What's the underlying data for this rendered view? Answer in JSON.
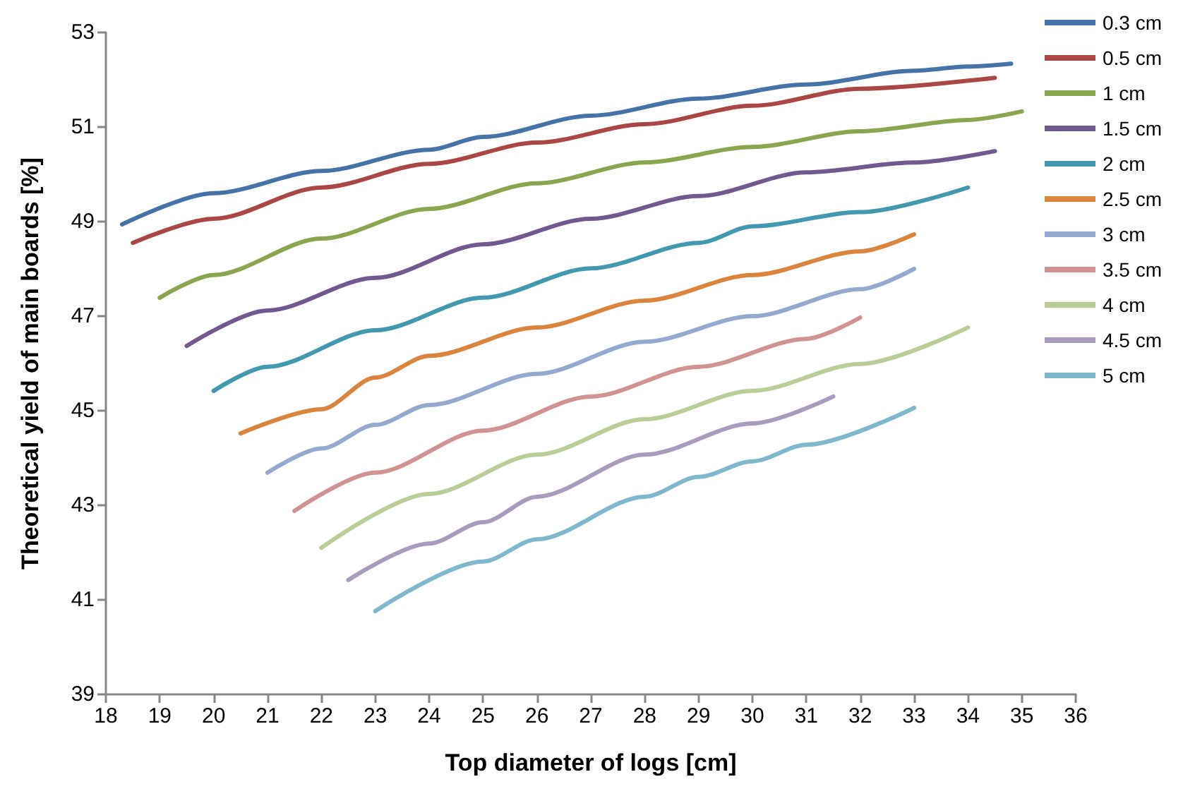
{
  "chart_data": {
    "type": "line",
    "xlabel": "Top diameter of logs [cm]",
    "ylabel": "Theoretical yield of main boards [%]",
    "xlim": [
      18,
      36
    ],
    "xticks": [
      18,
      19,
      20,
      21,
      22,
      23,
      24,
      25,
      26,
      27,
      28,
      29,
      30,
      31,
      32,
      33,
      34,
      35,
      36
    ],
    "ylim": [
      39,
      53
    ],
    "yticks": [
      39,
      41,
      43,
      45,
      47,
      49,
      51,
      53
    ],
    "grid": false,
    "legend": "right",
    "marker": "none",
    "line_style": "solid",
    "series": [
      {
        "name": "0.3 cm",
        "color": "#4572a7",
        "x": [
          18.3,
          20,
          22,
          24,
          25,
          27,
          29,
          31,
          33,
          34,
          34.8
        ],
        "values": [
          48.94,
          49.6,
          50.07,
          50.52,
          50.79,
          51.24,
          51.6,
          51.9,
          52.19,
          52.28,
          52.34
        ]
      },
      {
        "name": "0.5 cm",
        "color": "#aa4643",
        "x": [
          18.5,
          20,
          22,
          24,
          26,
          28,
          30,
          32,
          34.5
        ],
        "values": [
          48.55,
          49.06,
          49.72,
          50.22,
          50.67,
          51.06,
          51.45,
          51.81,
          52.04
        ]
      },
      {
        "name": "1 cm",
        "color": "#89a54e",
        "x": [
          19,
          20,
          22,
          24,
          26,
          28,
          30,
          32,
          34,
          35
        ],
        "values": [
          47.39,
          47.87,
          48.64,
          49.27,
          49.81,
          50.25,
          50.58,
          50.91,
          51.15,
          51.33
        ]
      },
      {
        "name": "1.5 cm",
        "color": "#71588f",
        "x": [
          19.5,
          21,
          23,
          25,
          27,
          29,
          31,
          33,
          34.5
        ],
        "values": [
          46.37,
          47.12,
          47.81,
          48.52,
          49.06,
          49.54,
          50.04,
          50.25,
          50.49
        ]
      },
      {
        "name": "2 cm",
        "color": "#4198af",
        "x": [
          20,
          21,
          23,
          25,
          27,
          29,
          30,
          32,
          34
        ],
        "values": [
          45.42,
          45.93,
          46.7,
          47.39,
          48.01,
          48.55,
          48.9,
          49.2,
          49.72
        ]
      },
      {
        "name": "2.5 cm",
        "color": "#db843d",
        "x": [
          20.5,
          22,
          23,
          24,
          26,
          28,
          30,
          32,
          33
        ],
        "values": [
          44.52,
          45.03,
          45.7,
          46.16,
          46.76,
          47.33,
          47.87,
          48.37,
          48.73
        ]
      },
      {
        "name": "3 cm",
        "color": "#93a9cf",
        "x": [
          21,
          22,
          23,
          24,
          26,
          28,
          30,
          32,
          33
        ],
        "values": [
          43.69,
          44.2,
          44.7,
          45.12,
          45.78,
          46.46,
          47.0,
          47.57,
          48.0
        ]
      },
      {
        "name": "3.5 cm",
        "color": "#d19392",
        "x": [
          21.5,
          23,
          25,
          27,
          29,
          31,
          32
        ],
        "values": [
          42.88,
          43.69,
          44.58,
          45.3,
          45.93,
          46.52,
          46.97
        ]
      },
      {
        "name": "4 cm",
        "color": "#b9cd96",
        "x": [
          22,
          24,
          26,
          28,
          30,
          32,
          34
        ],
        "values": [
          42.1,
          43.24,
          44.07,
          44.82,
          45.42,
          45.99,
          46.76
        ]
      },
      {
        "name": "4.5 cm",
        "color": "#a99bbd",
        "x": [
          22.5,
          24,
          25,
          26,
          28,
          30,
          31.5
        ],
        "values": [
          41.42,
          42.19,
          42.64,
          43.18,
          44.07,
          44.73,
          45.3
        ]
      },
      {
        "name": "5 cm",
        "color": "#7fb7cc",
        "x": [
          23,
          25,
          26,
          28,
          29,
          30,
          31,
          33
        ],
        "values": [
          40.76,
          41.81,
          42.28,
          43.18,
          43.6,
          43.93,
          44.28,
          45.06
        ]
      }
    ]
  }
}
